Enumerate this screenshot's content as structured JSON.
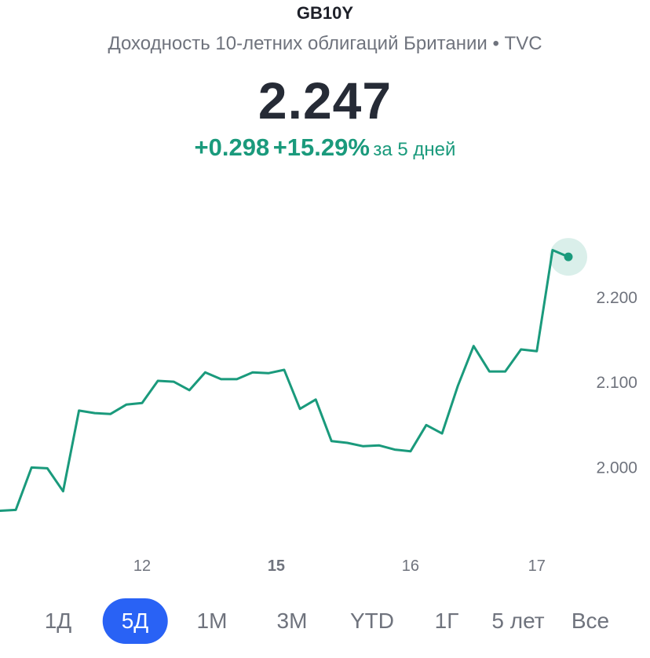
{
  "header": {
    "symbol": "GB10Y",
    "subtitle": "Доходность 10-летних облигаций Британии • TVC",
    "price": "2.247",
    "change_abs": "+0.298",
    "change_pct": "+15.29%",
    "change_period": "за 5 дней"
  },
  "colors": {
    "line": "#1a9a7c",
    "accent": "#2962f5",
    "muted_text": "#6f737d"
  },
  "tabs": [
    {
      "label": "1Д",
      "active": false
    },
    {
      "label": "5Д",
      "active": true
    },
    {
      "label": "1М",
      "active": false
    },
    {
      "label": "3М",
      "active": false
    },
    {
      "label": "YTD",
      "active": false
    },
    {
      "label": "1Г",
      "active": false
    },
    {
      "label": "5 лет",
      "active": false
    },
    {
      "label": "Все",
      "active": false
    }
  ],
  "chart_data": {
    "type": "line",
    "y_ticks": [
      2.0,
      2.1,
      2.2
    ],
    "y_tick_labels": [
      "2.000",
      "2.100",
      "2.200"
    ],
    "ylim": [
      1.93,
      2.285
    ],
    "x_labels": [
      {
        "label": "12",
        "x": 9,
        "bold": false
      },
      {
        "label": "15",
        "x": 17.5,
        "bold": true
      },
      {
        "label": "16",
        "x": 26,
        "bold": false
      },
      {
        "label": "17",
        "x": 34,
        "bold": false
      }
    ],
    "xlim": [
      0,
      36
    ],
    "grid": false,
    "series": [
      {
        "values": [
          1.948,
          1.949,
          1.999,
          1.998,
          1.971,
          2.066,
          2.063,
          2.062,
          2.073,
          2.075,
          2.101,
          2.1,
          2.09,
          2.111,
          2.103,
          2.103,
          2.111,
          2.11,
          2.114,
          2.068,
          2.079,
          2.03,
          2.028,
          2.024,
          2.025,
          2.02,
          2.018,
          2.049,
          2.039,
          2.095,
          2.142,
          2.112,
          2.112,
          2.138,
          2.136,
          2.255,
          2.247
        ]
      }
    ],
    "last_point_marker": true
  }
}
